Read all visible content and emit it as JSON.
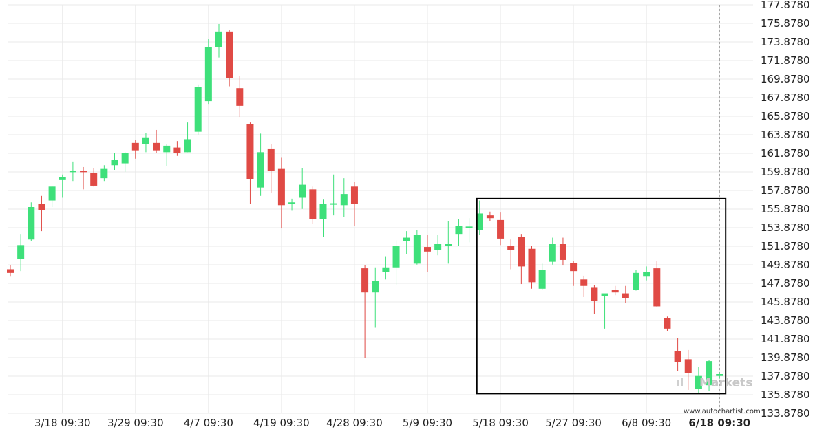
{
  "chart_data": {
    "type": "candlestick",
    "y_ticks": [
      "177.8780",
      "175.8780",
      "173.8780",
      "171.8780",
      "169.8780",
      "167.8780",
      "165.8780",
      "163.8780",
      "161.8780",
      "159.8780",
      "157.8780",
      "155.8780",
      "153.8780",
      "151.8780",
      "149.8780",
      "147.8780",
      "145.8780",
      "143.8780",
      "141.8780",
      "139.8780",
      "137.8780",
      "135.8780",
      "133.8780"
    ],
    "ylim": [
      133.878,
      177.878
    ],
    "x_ticks": [
      {
        "label": "3/18 09:30",
        "index": 5
      },
      {
        "label": "3/29 09:30",
        "index": 12
      },
      {
        "label": "4/7 09:30",
        "index": 19
      },
      {
        "label": "4/19 09:30",
        "index": 26
      },
      {
        "label": "4/28 09:30",
        "index": 33
      },
      {
        "label": "5/9 09:30",
        "index": 40
      },
      {
        "label": "5/18 09:30",
        "index": 47
      },
      {
        "label": "5/27 09:30",
        "index": 54
      },
      {
        "label": "6/8 09:30",
        "index": 61
      },
      {
        "label": "6/18 09:30",
        "index": 68,
        "bold": true
      }
    ],
    "candles": [
      {
        "o": 149.4,
        "h": 149.8,
        "l": 148.6,
        "c": 149.0
      },
      {
        "o": 150.5,
        "h": 153.2,
        "l": 149.2,
        "c": 152.0
      },
      {
        "o": 152.6,
        "h": 156.6,
        "l": 152.4,
        "c": 156.1
      },
      {
        "o": 156.4,
        "h": 157.3,
        "l": 153.5,
        "c": 155.8
      },
      {
        "o": 156.8,
        "h": 158.4,
        "l": 156.1,
        "c": 158.3
      },
      {
        "o": 159.0,
        "h": 159.6,
        "l": 157.1,
        "c": 159.3
      },
      {
        "o": 160.0,
        "h": 161.0,
        "l": 158.9,
        "c": 160.0
      },
      {
        "o": 160.0,
        "h": 160.4,
        "l": 158.0,
        "c": 159.9
      },
      {
        "o": 159.8,
        "h": 160.3,
        "l": 158.3,
        "c": 158.4
      },
      {
        "o": 159.2,
        "h": 160.6,
        "l": 158.9,
        "c": 160.2
      },
      {
        "o": 160.6,
        "h": 161.9,
        "l": 160.1,
        "c": 161.2
      },
      {
        "o": 160.8,
        "h": 162.0,
        "l": 159.9,
        "c": 161.9
      },
      {
        "o": 163.0,
        "h": 163.3,
        "l": 161.3,
        "c": 162.2
      },
      {
        "o": 162.9,
        "h": 164.1,
        "l": 162.0,
        "c": 163.6
      },
      {
        "o": 163.0,
        "h": 164.4,
        "l": 161.9,
        "c": 162.2
      },
      {
        "o": 162.0,
        "h": 162.9,
        "l": 160.5,
        "c": 162.7
      },
      {
        "o": 162.5,
        "h": 163.2,
        "l": 161.6,
        "c": 161.9
      },
      {
        "o": 162.0,
        "h": 165.2,
        "l": 162.0,
        "c": 163.4
      },
      {
        "o": 164.2,
        "h": 169.3,
        "l": 163.9,
        "c": 169.0
      },
      {
        "o": 167.5,
        "h": 174.2,
        "l": 167.2,
        "c": 173.3
      },
      {
        "o": 173.3,
        "h": 175.8,
        "l": 172.2,
        "c": 175.0
      },
      {
        "o": 175.0,
        "h": 175.2,
        "l": 169.1,
        "c": 170.0
      },
      {
        "o": 168.9,
        "h": 170.2,
        "l": 165.8,
        "c": 167.0
      },
      {
        "o": 165.0,
        "h": 165.2,
        "l": 156.4,
        "c": 159.1
      },
      {
        "o": 158.2,
        "h": 164.0,
        "l": 157.3,
        "c": 162.0
      },
      {
        "o": 162.4,
        "h": 162.9,
        "l": 157.6,
        "c": 160.0
      },
      {
        "o": 160.2,
        "h": 161.4,
        "l": 153.8,
        "c": 156.3
      },
      {
        "o": 156.5,
        "h": 157.0,
        "l": 155.7,
        "c": 156.6
      },
      {
        "o": 157.1,
        "h": 160.3,
        "l": 155.9,
        "c": 158.5
      },
      {
        "o": 158.0,
        "h": 158.3,
        "l": 154.3,
        "c": 154.8
      },
      {
        "o": 154.8,
        "h": 156.9,
        "l": 152.9,
        "c": 156.4
      },
      {
        "o": 156.4,
        "h": 159.6,
        "l": 155.2,
        "c": 156.5
      },
      {
        "o": 156.3,
        "h": 159.2,
        "l": 155.0,
        "c": 157.5
      },
      {
        "o": 158.3,
        "h": 158.8,
        "l": 154.1,
        "c": 156.4
      },
      {
        "o": 149.5,
        "h": 149.8,
        "l": 139.8,
        "c": 146.9
      },
      {
        "o": 146.9,
        "h": 149.6,
        "l": 143.1,
        "c": 148.1
      },
      {
        "o": 149.1,
        "h": 150.8,
        "l": 148.3,
        "c": 149.6
      },
      {
        "o": 149.6,
        "h": 152.5,
        "l": 147.7,
        "c": 151.9
      },
      {
        "o": 152.4,
        "h": 153.5,
        "l": 151.0,
        "c": 152.8
      },
      {
        "o": 150.0,
        "h": 153.6,
        "l": 149.9,
        "c": 153.1
      },
      {
        "o": 151.8,
        "h": 153.1,
        "l": 149.1,
        "c": 151.3
      },
      {
        "o": 151.5,
        "h": 153.1,
        "l": 150.9,
        "c": 152.1
      },
      {
        "o": 151.9,
        "h": 154.6,
        "l": 150.0,
        "c": 152.1
      },
      {
        "o": 153.2,
        "h": 154.8,
        "l": 151.9,
        "c": 154.1
      },
      {
        "o": 154.0,
        "h": 154.9,
        "l": 152.3,
        "c": 154.0
      },
      {
        "o": 153.6,
        "h": 156.8,
        "l": 153.1,
        "c": 155.4
      },
      {
        "o": 155.2,
        "h": 155.6,
        "l": 154.6,
        "c": 154.9
      },
      {
        "o": 154.7,
        "h": 155.5,
        "l": 152.0,
        "c": 152.7
      },
      {
        "o": 151.9,
        "h": 152.6,
        "l": 149.4,
        "c": 151.5
      },
      {
        "o": 152.9,
        "h": 153.2,
        "l": 147.8,
        "c": 149.7
      },
      {
        "o": 151.6,
        "h": 151.9,
        "l": 147.3,
        "c": 148.0
      },
      {
        "o": 147.3,
        "h": 150.0,
        "l": 147.2,
        "c": 149.3
      },
      {
        "o": 150.2,
        "h": 152.8,
        "l": 149.9,
        "c": 152.1
      },
      {
        "o": 152.1,
        "h": 152.8,
        "l": 149.8,
        "c": 150.4
      },
      {
        "o": 150.1,
        "h": 150.3,
        "l": 147.6,
        "c": 149.2
      },
      {
        "o": 148.3,
        "h": 148.7,
        "l": 146.4,
        "c": 147.6
      },
      {
        "o": 147.4,
        "h": 147.7,
        "l": 144.6,
        "c": 146.0
      },
      {
        "o": 146.5,
        "h": 146.7,
        "l": 143.0,
        "c": 146.8
      },
      {
        "o": 147.2,
        "h": 147.6,
        "l": 146.6,
        "c": 146.9
      },
      {
        "o": 146.8,
        "h": 147.6,
        "l": 145.8,
        "c": 146.3
      },
      {
        "o": 147.2,
        "h": 149.3,
        "l": 147.1,
        "c": 149.0
      },
      {
        "o": 148.6,
        "h": 149.7,
        "l": 148.2,
        "c": 149.1
      },
      {
        "o": 149.5,
        "h": 150.3,
        "l": 145.3,
        "c": 145.4
      },
      {
        "o": 144.1,
        "h": 144.3,
        "l": 142.7,
        "c": 143.0
      },
      {
        "o": 140.6,
        "h": 142.0,
        "l": 138.4,
        "c": 139.4
      },
      {
        "o": 139.7,
        "h": 140.7,
        "l": 136.4,
        "c": 138.2
      },
      {
        "o": 136.5,
        "h": 138.9,
        "l": 136.1,
        "c": 137.9
      },
      {
        "o": 136.9,
        "h": 139.6,
        "l": 136.3,
        "c": 139.5
      },
      {
        "o": 137.9,
        "h": 138.3,
        "l": 137.6,
        "c": 138.1
      }
    ],
    "pattern_box": {
      "start_index": 45,
      "end_index": 68,
      "high": 157.0,
      "low": 136.0
    },
    "colors": {
      "up": "#3ee07a",
      "down": "#e04a45",
      "box": "#000000",
      "grid": "#e9e9e9",
      "vline": "#888888"
    }
  },
  "watermark": {
    "text": "Markets"
  },
  "source": {
    "text": "www.autochartist.com"
  }
}
